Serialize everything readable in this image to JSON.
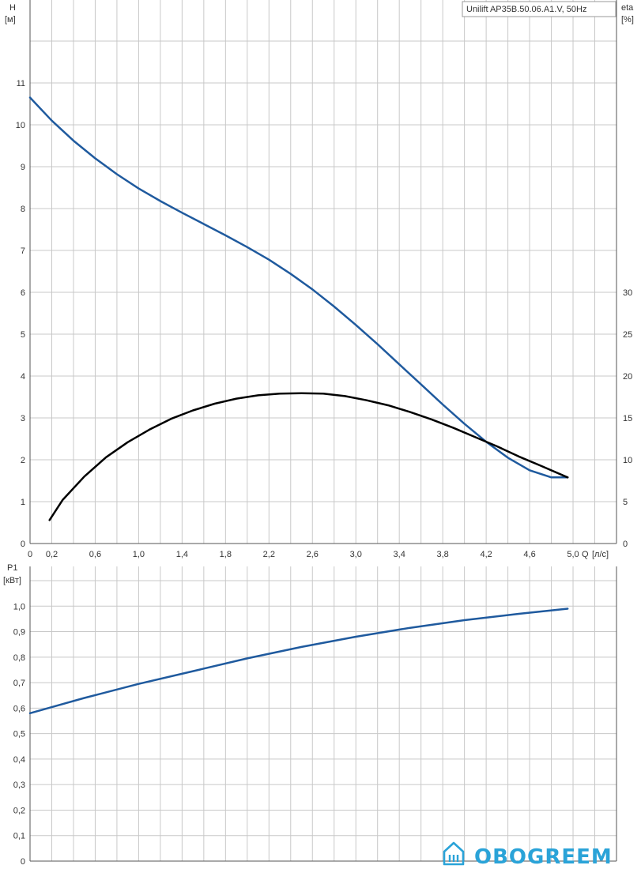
{
  "chart_data": [
    {
      "type": "line",
      "title": "Unilift AP35B.50.06.A1.V, 50Hz",
      "ylabel": "H",
      "yunit": "[м]",
      "y2label": "eta",
      "y2unit": "[%]",
      "xlabel": "Q",
      "xunit": "[л/с]",
      "xlim": [
        0,
        5.4
      ],
      "ylim": [
        0,
        12
      ],
      "y2lim": [
        0,
        30
      ],
      "x_ticks": [
        "0",
        "0,2",
        "0,6",
        "1,0",
        "1,4",
        "1,8",
        "2,2",
        "2,6",
        "3,0",
        "3,4",
        "3,8",
        "4,2",
        "4,6",
        "5,0"
      ],
      "x_tick_values": [
        0,
        0.2,
        0.6,
        1.0,
        1.4,
        1.8,
        2.2,
        2.6,
        3.0,
        3.4,
        3.8,
        4.2,
        4.6,
        5.0
      ],
      "y_ticks": [
        "0",
        "1",
        "2",
        "3",
        "4",
        "5",
        "6",
        "7",
        "8",
        "9",
        "10",
        "11"
      ],
      "y_tick_values": [
        0,
        1,
        2,
        3,
        4,
        5,
        6,
        7,
        8,
        9,
        10,
        11
      ],
      "y2_ticks": [
        "0",
        "5",
        "10",
        "15",
        "20",
        "25",
        "30"
      ],
      "y2_tick_values": [
        0,
        5,
        10,
        15,
        20,
        25,
        30
      ],
      "grid": true,
      "series": [
        {
          "axis": "left",
          "color": "#1f5a9e",
          "x": [
            0,
            0.2,
            0.4,
            0.6,
            0.8,
            1.0,
            1.2,
            1.4,
            1.6,
            1.8,
            2.0,
            2.2,
            2.4,
            2.6,
            2.8,
            3.0,
            3.2,
            3.4,
            3.6,
            3.8,
            4.0,
            4.2,
            4.4,
            4.6,
            4.8,
            4.95
          ],
          "values": [
            10.65,
            10.1,
            9.62,
            9.2,
            8.82,
            8.48,
            8.18,
            7.9,
            7.63,
            7.36,
            7.08,
            6.78,
            6.44,
            6.07,
            5.66,
            5.22,
            4.76,
            4.28,
            3.8,
            3.32,
            2.86,
            2.43,
            2.05,
            1.75,
            1.58,
            1.58
          ]
        },
        {
          "axis": "right",
          "color": "#000000",
          "x": [
            0.18,
            0.3,
            0.5,
            0.7,
            0.9,
            1.1,
            1.3,
            1.5,
            1.7,
            1.9,
            2.1,
            2.3,
            2.5,
            2.7,
            2.9,
            3.1,
            3.3,
            3.5,
            3.7,
            3.9,
            4.1,
            4.3,
            4.5,
            4.7,
            4.95
          ],
          "values": [
            2.8,
            5.2,
            8.0,
            10.3,
            12.1,
            13.6,
            14.9,
            15.9,
            16.7,
            17.3,
            17.7,
            17.9,
            17.95,
            17.9,
            17.6,
            17.1,
            16.5,
            15.7,
            14.8,
            13.8,
            12.7,
            11.6,
            10.4,
            9.3,
            7.9
          ]
        }
      ]
    },
    {
      "type": "line",
      "ylabel": "P1",
      "yunit": "[кВт]",
      "xlim": [
        0,
        5.4
      ],
      "ylim": [
        0,
        1.1
      ],
      "y_ticks": [
        "0",
        "0,1",
        "0,2",
        "0,3",
        "0,4",
        "0,5",
        "0,6",
        "0,7",
        "0,8",
        "0,9",
        "1,0"
      ],
      "y_tick_values": [
        0,
        0.1,
        0.2,
        0.3,
        0.4,
        0.5,
        0.6,
        0.7,
        0.8,
        0.9,
        1.0
      ],
      "grid": true,
      "series": [
        {
          "axis": "left",
          "color": "#1f5a9e",
          "x": [
            0,
            0.5,
            1.0,
            1.5,
            2.0,
            2.5,
            3.0,
            3.5,
            4.0,
            4.5,
            4.95
          ],
          "values": [
            0.58,
            0.64,
            0.695,
            0.745,
            0.795,
            0.84,
            0.88,
            0.915,
            0.945,
            0.97,
            0.99
          ]
        }
      ]
    }
  ],
  "logo": {
    "text": "OBOGREEM",
    "icon": "house-radiator-icon",
    "color": "#2aa3d8"
  }
}
